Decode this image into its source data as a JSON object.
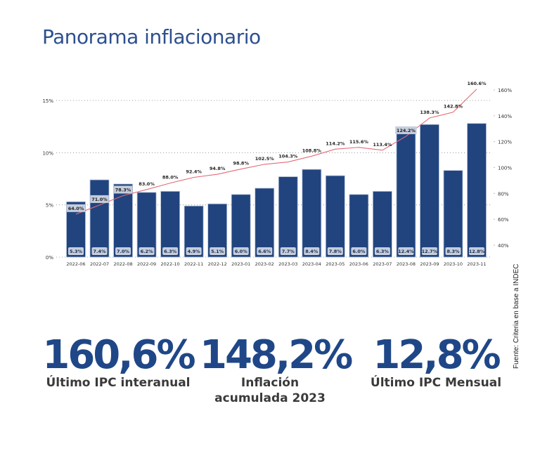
{
  "page": {
    "title": "Panorama inflacionario",
    "source": "Fuente: Criteria en base a INDEC"
  },
  "colors": {
    "title": "#2d4f8e",
    "bar": "#21447f",
    "bar_label_bg": "#c5cede",
    "line": "#e36a77",
    "stat_number": "#1f4788",
    "stat_label": "#3a3a3a"
  },
  "stats": [
    {
      "value": "160,6%",
      "label": "Último IPC interanual"
    },
    {
      "value": "148,2%",
      "label": "Inflación acumulada 2023"
    },
    {
      "value": "12,8%",
      "label": "Último IPC Mensual"
    }
  ],
  "chart_data": {
    "type": "bar",
    "title": "Panorama inflacionario",
    "categories": [
      "2022-06",
      "2022-07",
      "2022-08",
      "2022-09",
      "2022-10",
      "2022-11",
      "2022-12",
      "2023-01",
      "2023-02",
      "2023-03",
      "2023-04",
      "2023-05",
      "2023-06",
      "2023-07",
      "2023-08",
      "2023-09",
      "2023-10",
      "2023-11"
    ],
    "series": [
      {
        "name": "IPC mensual",
        "type": "bar",
        "axis": "left",
        "values": [
          5.3,
          7.4,
          7.0,
          6.2,
          6.3,
          4.9,
          5.1,
          6.0,
          6.6,
          7.7,
          8.4,
          7.8,
          6.0,
          6.3,
          12.4,
          12.7,
          8.3,
          12.8
        ],
        "labels": [
          "5.3%",
          "7.4%",
          "7.0%",
          "6.2%",
          "6.3%",
          "4.9%",
          "5.1%",
          "6.0%",
          "6.6%",
          "7.7%",
          "8.4%",
          "7.8%",
          "6.0%",
          "6.3%",
          "12.4%",
          "12.7%",
          "8.3%",
          "12.8%"
        ]
      },
      {
        "name": "IPC interanual",
        "type": "line",
        "axis": "right",
        "values": [
          64.0,
          71.0,
          78.3,
          83.0,
          88.0,
          92.4,
          94.8,
          98.8,
          102.5,
          104.3,
          108.8,
          114.2,
          115.6,
          113.4,
          124.2,
          138.3,
          142.8,
          160.6
        ],
        "labels": [
          "64.0%",
          "71.0%",
          "78.3%",
          "83.0%",
          "88.0%",
          "92.4%",
          "94.8%",
          "98.8%",
          "102.5%",
          "104.3%",
          "108.8%",
          "114.2%",
          "115.6%",
          "113.4%",
          "124.2%",
          "138.3%",
          "142.8%",
          "160.6%"
        ]
      }
    ],
    "left_axis": {
      "ticks": [
        "0%",
        "5%",
        "10%",
        "15%"
      ],
      "values": [
        0,
        5,
        10,
        15
      ],
      "ylim": [
        0,
        15
      ]
    },
    "right_axis": {
      "ticks": [
        "40%",
        "60%",
        "80%",
        "100%",
        "120%",
        "140%",
        "160%"
      ],
      "values": [
        40,
        60,
        80,
        100,
        120,
        140,
        160
      ],
      "ylim": [
        30,
        160
      ]
    },
    "grid": "dotted horizontal at left ticks",
    "xlabel": "",
    "ylabel": ""
  }
}
